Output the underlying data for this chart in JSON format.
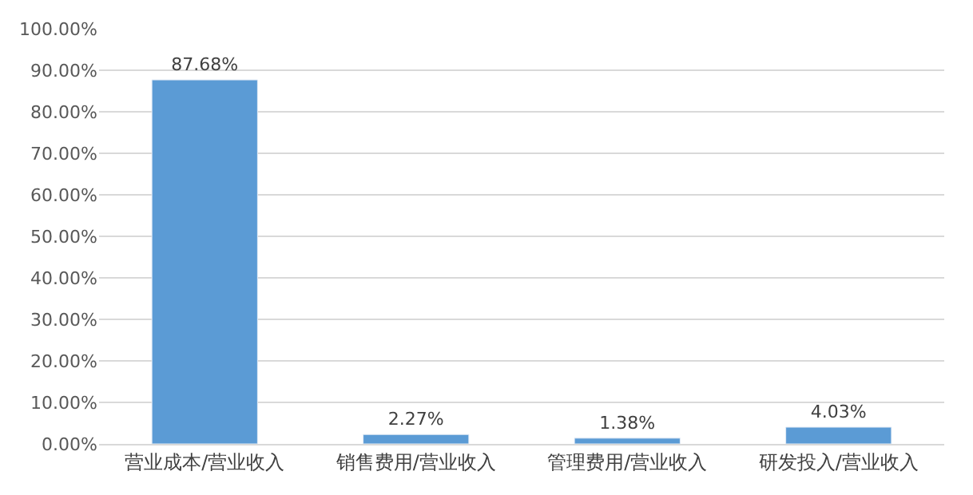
{
  "chart_data": {
    "type": "bar",
    "categories": [
      "营业成本/营业收入",
      "销售费用/营业收入",
      "管理费用/营业收入",
      "研发投入/营业收入"
    ],
    "values": [
      87.68,
      2.27,
      1.38,
      4.03
    ],
    "value_labels": [
      "87.68%",
      "2.27%",
      "1.38%",
      "4.03%"
    ],
    "color": "#5b9bd5",
    "ylim": [
      0,
      100
    ],
    "yticks": [
      {
        "value": 0,
        "label": "0.00%"
      },
      {
        "value": 10,
        "label": "10.00%"
      },
      {
        "value": 20,
        "label": "20.00%"
      },
      {
        "value": 30,
        "label": "30.00%"
      },
      {
        "value": 40,
        "label": "40.00%"
      },
      {
        "value": 50,
        "label": "50.00%"
      },
      {
        "value": 60,
        "label": "60.00%"
      },
      {
        "value": 70,
        "label": "70.00%"
      },
      {
        "value": 80,
        "label": "80.00%"
      },
      {
        "value": 90,
        "label": "90.00%"
      },
      {
        "value": 100,
        "label": "100.00%"
      }
    ],
    "grid": "y"
  }
}
